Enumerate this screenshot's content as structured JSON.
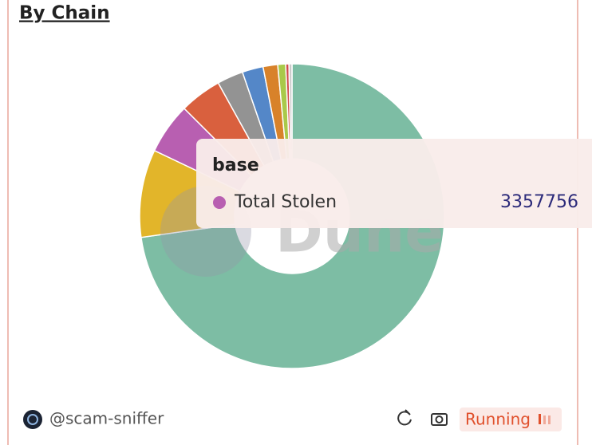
{
  "chart_data": {
    "type": "pie",
    "title": "By Chain",
    "categories": [
      null,
      null,
      "base",
      null,
      null,
      null,
      null,
      null,
      null,
      null
    ],
    "series_name": "Total Stolen",
    "values": [
      45100000,
      5770000,
      3357756,
      2760000,
      1720000,
      1380000,
      960000,
      520000,
      210000,
      200000
    ],
    "colors": [
      "#7dbda4",
      "#e2b52a",
      "#b85fb1",
      "#d9603e",
      "#939393",
      "#5487c8",
      "#d8822a",
      "#a9c94a",
      "#d14b4b",
      "#c9c9c9"
    ],
    "tooltip_index": 2
  },
  "watermark": "Dune",
  "footer": {
    "author": "@scam-sniffer",
    "status": "Running"
  }
}
